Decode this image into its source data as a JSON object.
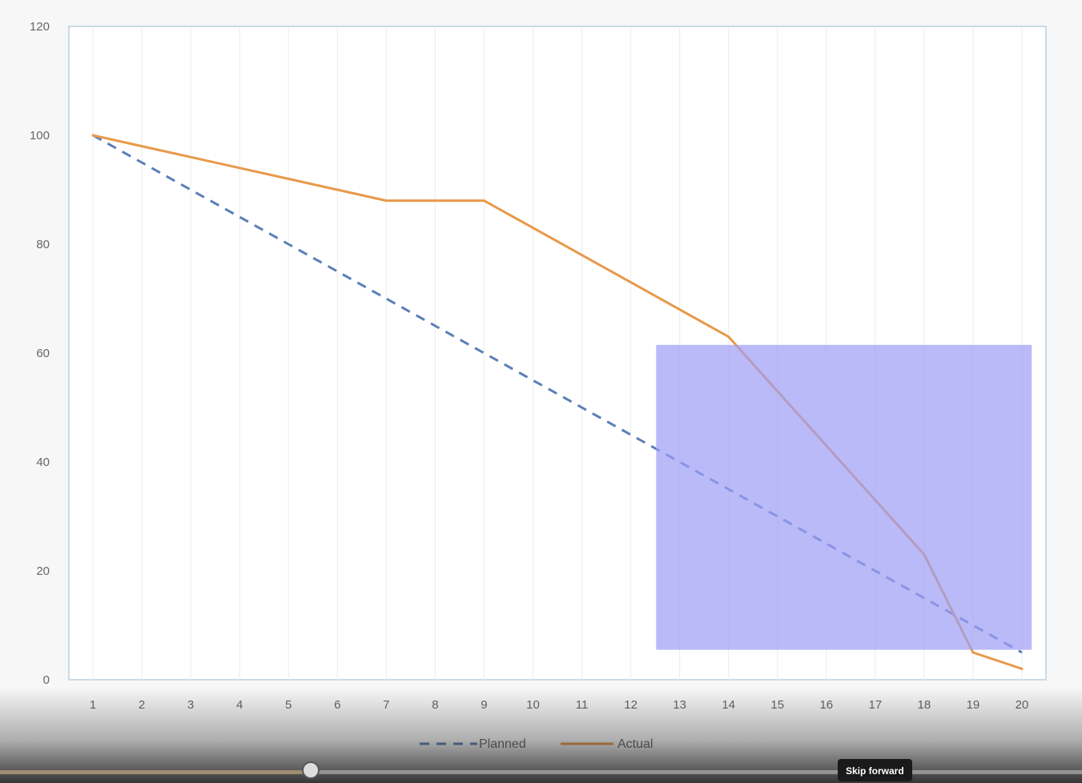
{
  "chart_data": {
    "type": "line",
    "title": "",
    "xlabel": "",
    "ylabel": "",
    "categories": [
      "1",
      "2",
      "3",
      "4",
      "5",
      "6",
      "7",
      "8",
      "9",
      "10",
      "11",
      "12",
      "13",
      "14",
      "15",
      "16",
      "17",
      "18",
      "19",
      "20"
    ],
    "ylim": [
      0,
      120
    ],
    "yticks": [
      "0",
      "20",
      "40",
      "60",
      "80",
      "100",
      "120"
    ],
    "grid": "vertical",
    "legend": "bottom",
    "series": [
      {
        "name": "Planned",
        "style": "dashed",
        "color": "#5b7fb8",
        "values": [
          100,
          95,
          90,
          85,
          80,
          75,
          70,
          65,
          60,
          55,
          50,
          45,
          40,
          35,
          30,
          25,
          20,
          15,
          10,
          5
        ]
      },
      {
        "name": "Actual",
        "style": "solid",
        "color": "#e8994a",
        "values": [
          100,
          98,
          96,
          94,
          92,
          90,
          88,
          88,
          88,
          83,
          78,
          73,
          68,
          63,
          53,
          43,
          33,
          23,
          5,
          2
        ]
      }
    ],
    "highlight": {
      "x_from": 12.52,
      "x_to": 20.2,
      "y_from": 5.5,
      "y_to": 61.5,
      "color": "#9c9cf5",
      "opacity": 0.7
    }
  },
  "player": {
    "tooltip": "Skip forward",
    "progress": 0.287
  }
}
